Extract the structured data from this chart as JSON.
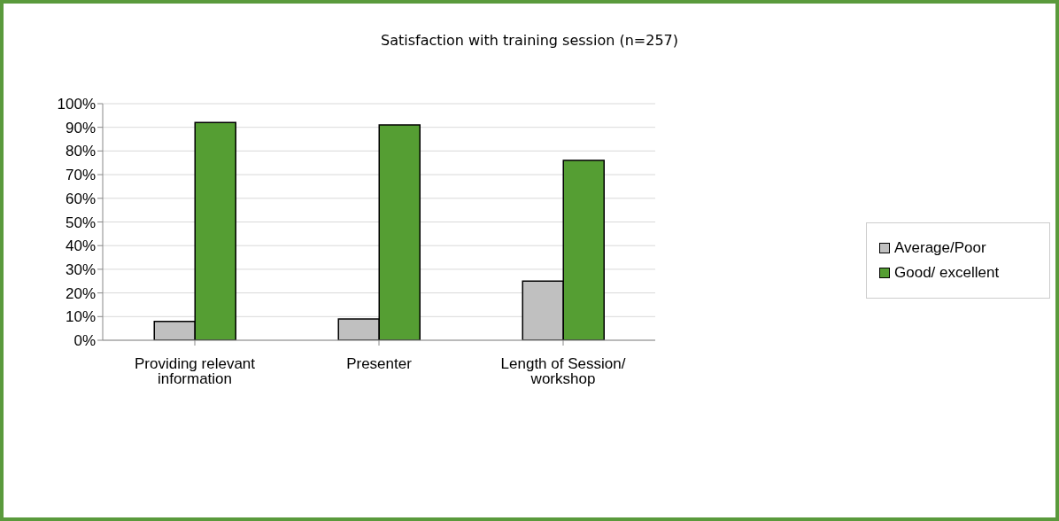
{
  "chart_data": {
    "type": "bar",
    "title": "Satisfaction with training session (n=257)",
    "categories": [
      "Providing relevant information",
      "Presenter",
      "Length of Session/ workshop"
    ],
    "series": [
      {
        "name": "Average/Poor",
        "color": "#c0c0c0",
        "values": [
          8,
          9,
          25
        ]
      },
      {
        "name": "Good/ excellent",
        "color": "#559e33",
        "values": [
          92,
          91,
          76
        ]
      }
    ],
    "ylim": [
      0,
      100
    ],
    "yticks": [
      {
        "value": 0,
        "label": "0%"
      },
      {
        "value": 10,
        "label": "10%"
      },
      {
        "value": 20,
        "label": "20%"
      },
      {
        "value": 30,
        "label": "30%"
      },
      {
        "value": 40,
        "label": "40%"
      },
      {
        "value": 50,
        "label": "50%"
      },
      {
        "value": 60,
        "label": "60%"
      },
      {
        "value": 70,
        "label": "70%"
      },
      {
        "value": 80,
        "label": "80%"
      },
      {
        "value": 90,
        "label": "90%"
      },
      {
        "value": 100,
        "label": "100%"
      }
    ],
    "grid": "y",
    "legend": "right"
  }
}
